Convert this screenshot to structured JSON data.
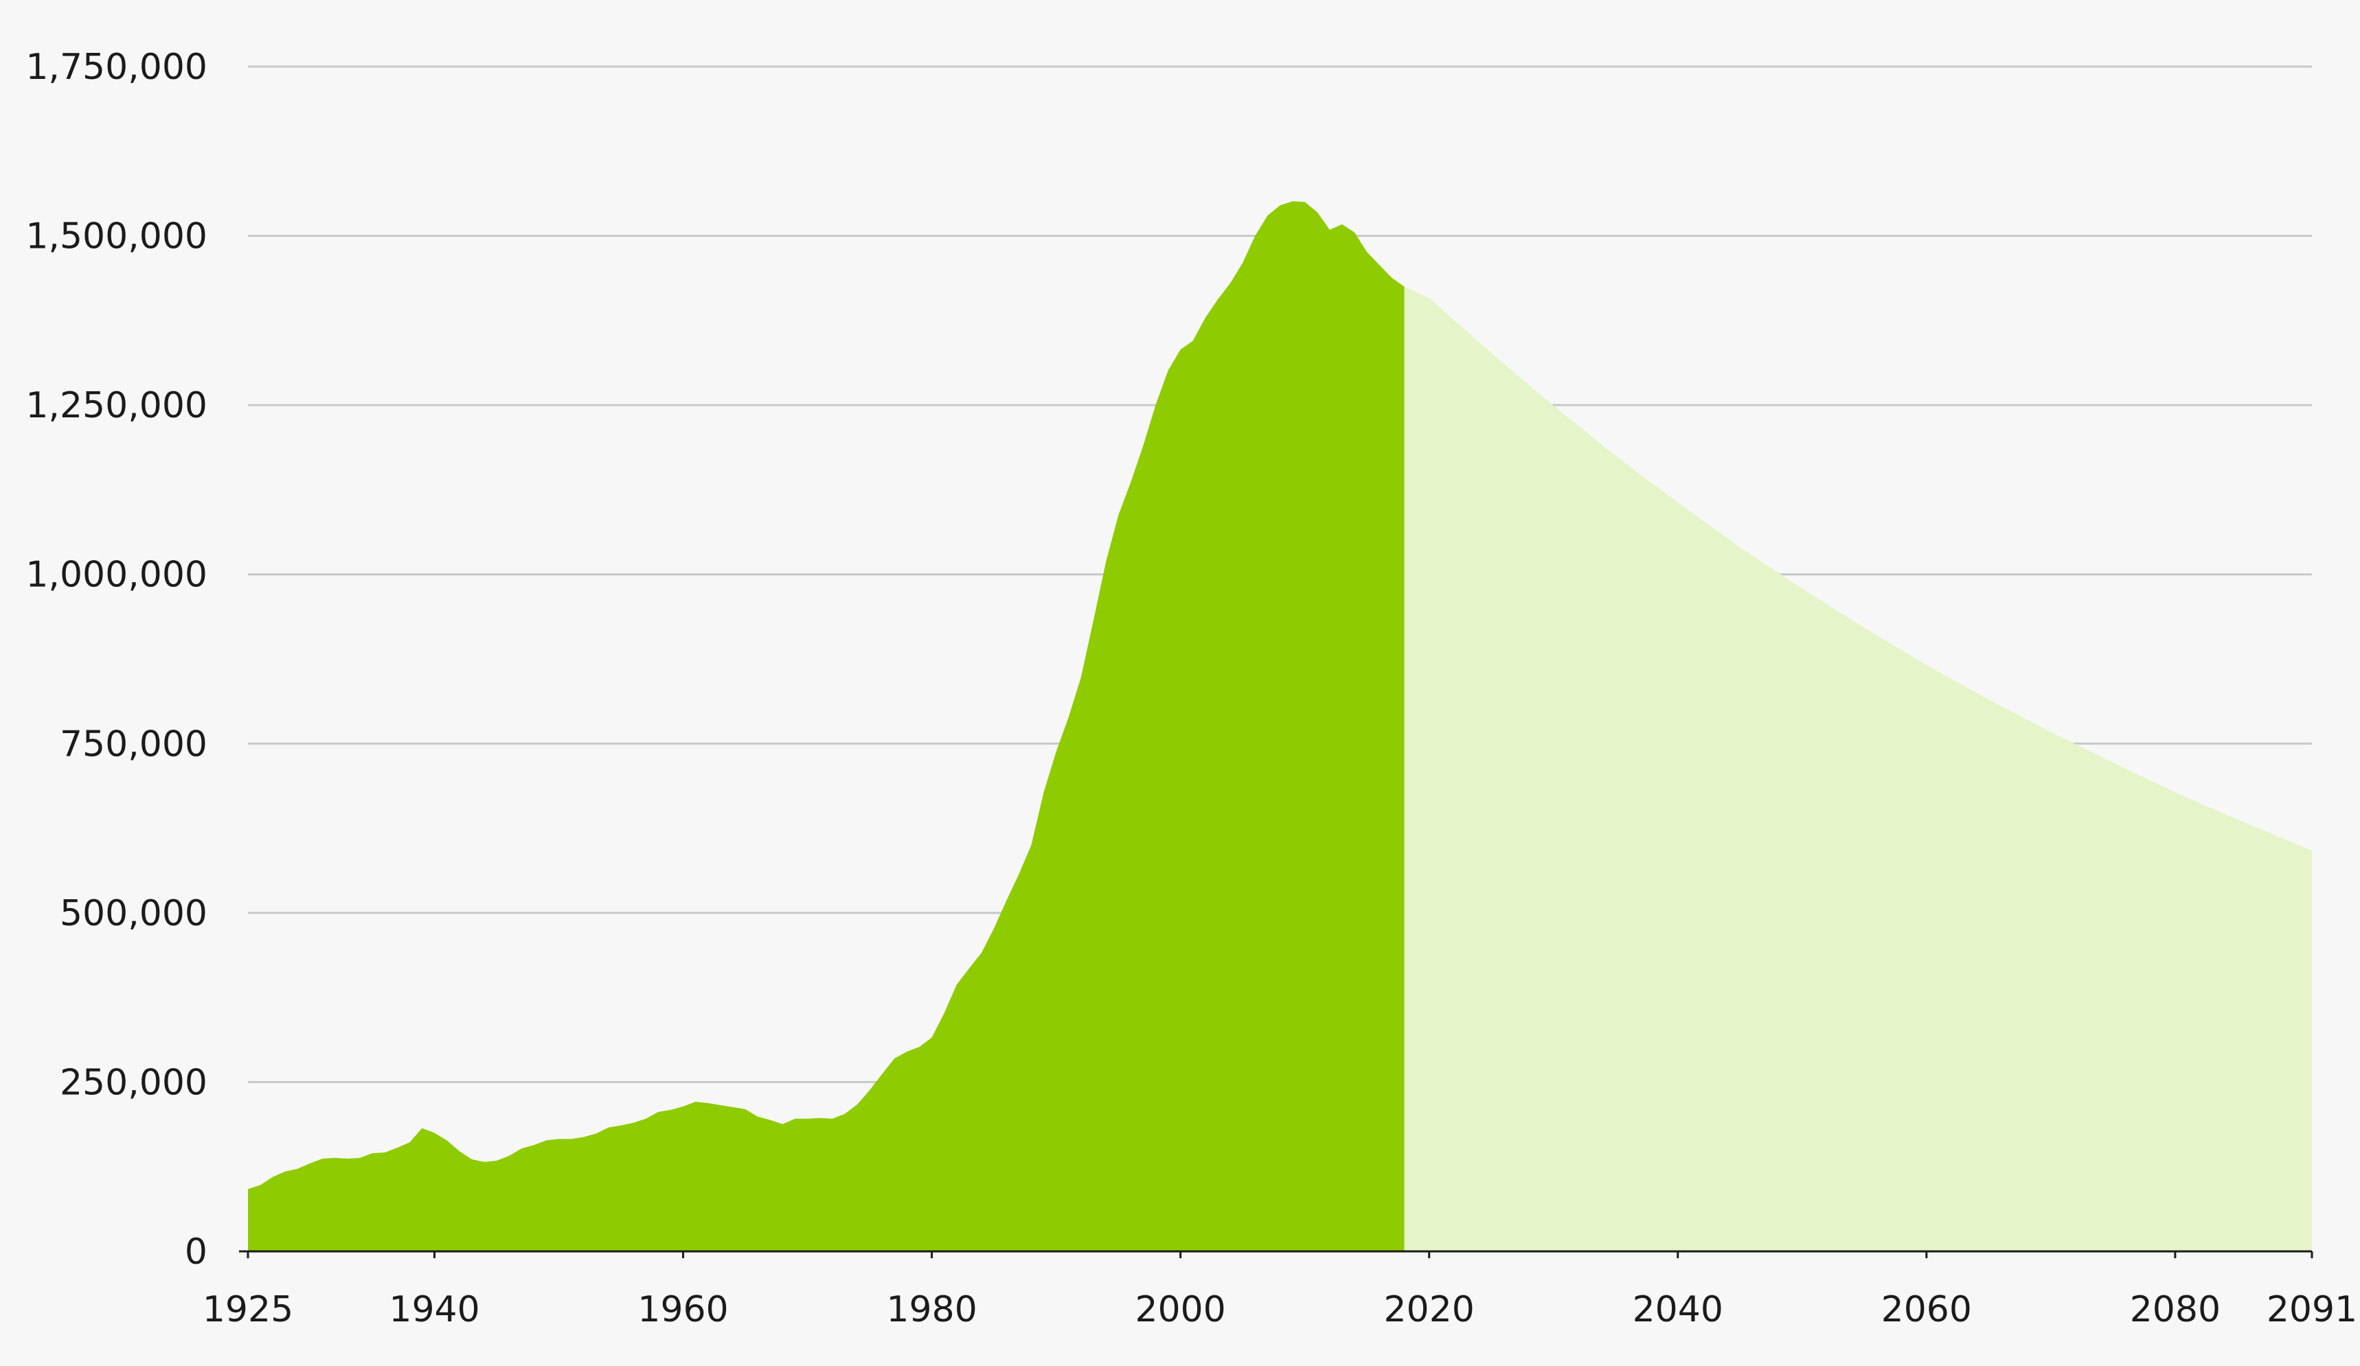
{
  "chart_data": {
    "type": "area",
    "title": "",
    "xlabel": "",
    "ylabel": "",
    "xlim": [
      1925,
      2091
    ],
    "ylim": [
      0,
      1750000
    ],
    "x_ticks": [
      1925,
      1940,
      1960,
      1980,
      2000,
      2020,
      2040,
      2060,
      2080,
      2091
    ],
    "x_tick_labels": [
      "1925",
      "1940",
      "1960",
      "1980",
      "2000",
      "2020",
      "2040",
      "2060",
      "2080",
      "2091"
    ],
    "y_ticks": [
      0,
      250000,
      500000,
      750000,
      1000000,
      1250000,
      1500000,
      1750000
    ],
    "y_tick_labels": [
      "0",
      "250,000",
      "500,000",
      "750,000",
      "1,000,000",
      "1,250,000",
      "1,500,000",
      "1,750,000"
    ],
    "grid": true,
    "legend": "none",
    "colors": {
      "historical": "#8ecb00",
      "projection": "#e6f4c9",
      "grid": "#c8c8c8",
      "axis": "#1b1b1b",
      "background": "#f7f7f7"
    },
    "series": [
      {
        "x": [
          1925,
          1926,
          1927,
          1928,
          1929,
          1930,
          1931,
          1932,
          1933,
          1934,
          1935,
          1936,
          1937,
          1938,
          1939,
          1940,
          1941,
          1942,
          1943,
          1944,
          1945,
          1946,
          1947,
          1948,
          1949,
          1950,
          1951,
          1952,
          1953,
          1954,
          1955,
          1956,
          1957,
          1958,
          1959,
          1960,
          1961,
          1962,
          1963,
          1964,
          1965,
          1966,
          1967,
          1968,
          1969,
          1970,
          1971,
          1972,
          1973,
          1974,
          1975,
          1976,
          1977,
          1978,
          1979,
          1980,
          1981,
          1982,
          1983,
          1984,
          1985,
          1986,
          1987,
          1988,
          1989,
          1990,
          1991,
          1992,
          1993,
          1994,
          1995,
          1996,
          1997,
          1998,
          1999,
          2000,
          2001,
          2002,
          2003,
          2004,
          2005,
          2006,
          2007,
          2008,
          2009,
          2010,
          2011,
          2012,
          2013,
          2014,
          2015,
          2016,
          2017,
          2018
        ],
        "values": [
          92000,
          98000,
          110000,
          118000,
          122000,
          130000,
          137000,
          138000,
          137000,
          138000,
          145000,
          146000,
          153000,
          161000,
          182000,
          175000,
          164000,
          148000,
          136000,
          132000,
          134000,
          141000,
          152000,
          157000,
          164000,
          166000,
          166000,
          169000,
          174000,
          183000,
          186000,
          190000,
          196000,
          206000,
          209000,
          214000,
          221000,
          219000,
          216000,
          213000,
          210000,
          199000,
          194000,
          188000,
          196000,
          196000,
          197000,
          196000,
          203000,
          217000,
          238000,
          262000,
          285000,
          295000,
          302000,
          316000,
          352000,
          394000,
          418000,
          441000,
          477000,
          518000,
          557000,
          600000,
          678000,
          738000,
          789000,
          848000,
          932000,
          1018000,
          1087000,
          1136000,
          1190000,
          1250000,
          1301000,
          1332000,
          1345000,
          1379000,
          1406000,
          1430000,
          1460000,
          1500000,
          1530000,
          1545000,
          1551000,
          1550000,
          1535000,
          1509000,
          1517000,
          1505000,
          1476000,
          1457000,
          1438000,
          1425000
        ]
      },
      {
        "x": [
          2018,
          2020,
          2025,
          2030,
          2035,
          2040,
          2045,
          2050,
          2055,
          2060,
          2065,
          2070,
          2075,
          2080,
          2085,
          2091
        ],
        "values": [
          1425000,
          1408000,
          1327000,
          1249000,
          1175000,
          1106000,
          1040000,
          979000,
          921000,
          866000,
          815000,
          767000,
          722000,
          678000,
          638000,
          592000
        ]
      }
    ]
  }
}
